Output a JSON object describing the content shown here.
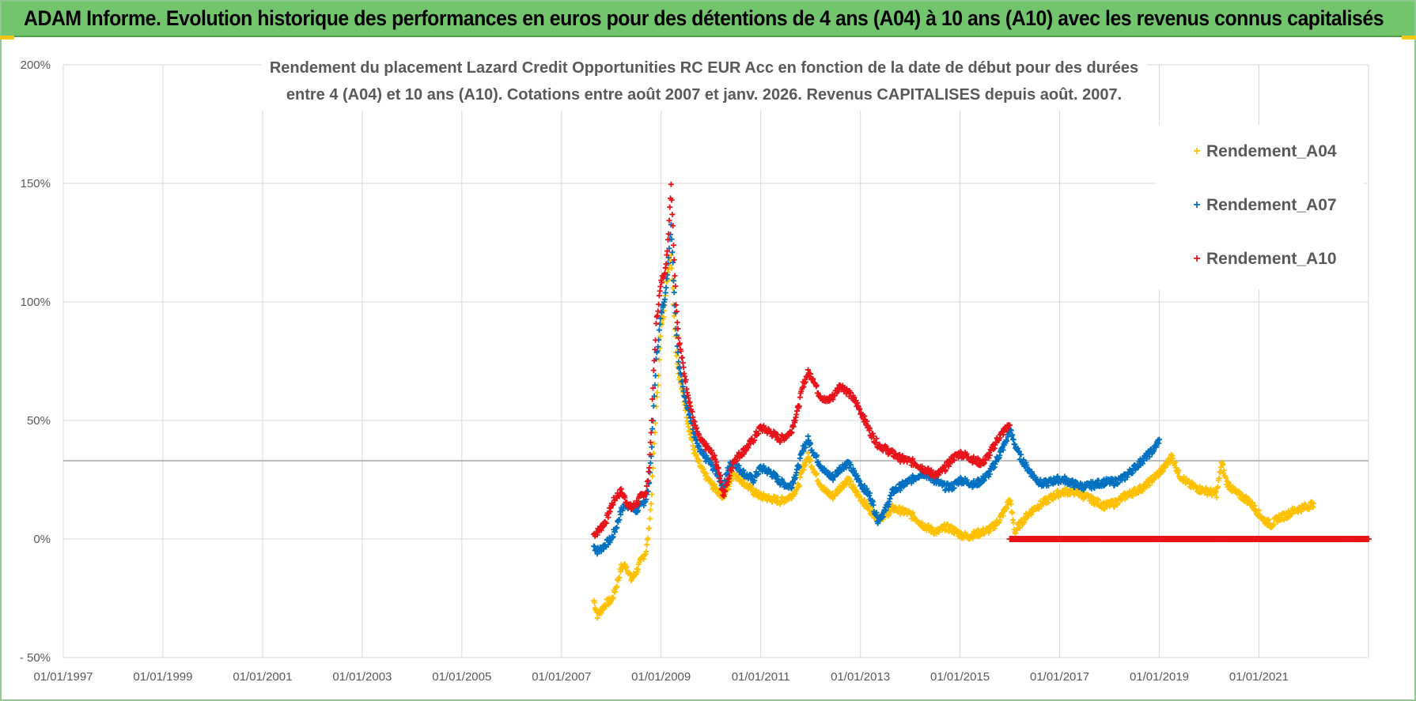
{
  "banner": {
    "title": "ADAM Informe. Evolution historique des performances en euros pour des détentions de 4 ans (A04) à 10 ans (A10) avec les revenus connus capitalisés"
  },
  "colors": {
    "banner_bg": "#72c46d",
    "accent_yellow": "#f5c518",
    "A04": "#ffc000",
    "A07": "#0070c0",
    "A10": "#e8141b",
    "grid": "#d9d9d9",
    "text": "#595959"
  },
  "chart_data": {
    "type": "scatter",
    "title_lines": [
      "Rendement du placement Lazard Credit Opportunities RC EUR Acc en fonction de la date de début pour des durées",
      "entre 4 (A04) et 10 ans (A10).  Cotations entre août 2007  et janv. 2026.  Revenus CAPITALISES  depuis août. 2007."
    ],
    "x_tick_labels": [
      "01/01/1997",
      "01/01/1999",
      "01/01/2001",
      "01/01/2003",
      "01/01/2005",
      "01/01/2007",
      "01/01/2009",
      "01/01/2011",
      "01/01/2013",
      "01/01/2015",
      "01/01/2017",
      "01/01/2019",
      "01/01/2021"
    ],
    "x_range": [
      1997.0,
      2023.2
    ],
    "y_tick_labels": [
      "200%",
      "150%",
      "100%",
      "50%",
      "0%",
      "- 50%"
    ],
    "y_ticks": [
      200,
      150,
      100,
      50,
      0,
      -50
    ],
    "y_range": [
      -50,
      200
    ],
    "reference_line_y": 33,
    "grid": true,
    "legend_position": "top-right",
    "marker": "+",
    "series": [
      {
        "name": "Rendement_A04",
        "color_key": "A04",
        "points": [
          [
            2007.65,
            -26
          ],
          [
            2007.72,
            -32
          ],
          [
            2007.8,
            -30
          ],
          [
            2007.9,
            -27
          ],
          [
            2008.0,
            -26
          ],
          [
            2008.1,
            -20
          ],
          [
            2008.2,
            -12
          ],
          [
            2008.3,
            -11
          ],
          [
            2008.4,
            -17
          ],
          [
            2008.5,
            -14
          ],
          [
            2008.6,
            -9
          ],
          [
            2008.7,
            -5
          ],
          [
            2008.75,
            3
          ],
          [
            2008.8,
            15
          ],
          [
            2008.85,
            35
          ],
          [
            2008.9,
            55
          ],
          [
            2008.95,
            70
          ],
          [
            2009.0,
            90
          ],
          [
            2009.05,
            95
          ],
          [
            2009.1,
            105
          ],
          [
            2009.15,
            115
          ],
          [
            2009.2,
            120
          ],
          [
            2009.25,
            100
          ],
          [
            2009.3,
            80
          ],
          [
            2009.35,
            70
          ],
          [
            2009.45,
            60
          ],
          [
            2009.55,
            48
          ],
          [
            2009.65,
            38
          ],
          [
            2009.75,
            32
          ],
          [
            2009.85,
            28
          ],
          [
            2009.95,
            25
          ],
          [
            2010.05,
            22
          ],
          [
            2010.15,
            20
          ],
          [
            2010.25,
            18
          ],
          [
            2010.35,
            22
          ],
          [
            2010.45,
            28
          ],
          [
            2010.55,
            26
          ],
          [
            2010.7,
            23
          ],
          [
            2010.85,
            20
          ],
          [
            2011.0,
            18
          ],
          [
            2011.2,
            17
          ],
          [
            2011.4,
            16
          ],
          [
            2011.6,
            18
          ],
          [
            2011.75,
            22
          ],
          [
            2011.85,
            30
          ],
          [
            2011.95,
            35
          ],
          [
            2012.05,
            30
          ],
          [
            2012.15,
            25
          ],
          [
            2012.3,
            20
          ],
          [
            2012.45,
            18
          ],
          [
            2012.6,
            22
          ],
          [
            2012.75,
            25
          ],
          [
            2012.9,
            20
          ],
          [
            2013.05,
            16
          ],
          [
            2013.2,
            12
          ],
          [
            2013.35,
            9
          ],
          [
            2013.5,
            10
          ],
          [
            2013.65,
            13
          ],
          [
            2013.8,
            12
          ],
          [
            2013.95,
            11
          ],
          [
            2014.1,
            9
          ],
          [
            2014.25,
            6
          ],
          [
            2014.4,
            4
          ],
          [
            2014.55,
            3
          ],
          [
            2014.7,
            5
          ],
          [
            2014.85,
            4
          ],
          [
            2015.0,
            2
          ],
          [
            2015.15,
            1
          ],
          [
            2015.3,
            2
          ],
          [
            2015.45,
            3
          ],
          [
            2015.6,
            4
          ],
          [
            2015.75,
            7
          ],
          [
            2015.9,
            12
          ],
          [
            2016.0,
            17
          ],
          [
            2016.1,
            3
          ],
          [
            2016.2,
            6
          ],
          [
            2016.35,
            10
          ],
          [
            2016.5,
            13
          ],
          [
            2016.65,
            15
          ],
          [
            2016.8,
            17
          ],
          [
            2016.95,
            19
          ],
          [
            2017.1,
            20
          ],
          [
            2017.3,
            20
          ],
          [
            2017.5,
            18
          ],
          [
            2017.7,
            16
          ],
          [
            2017.9,
            14
          ],
          [
            2018.1,
            15
          ],
          [
            2018.3,
            18
          ],
          [
            2018.5,
            20
          ],
          [
            2018.7,
            22
          ],
          [
            2018.9,
            26
          ],
          [
            2019.1,
            30
          ],
          [
            2019.25,
            35
          ],
          [
            2019.4,
            27
          ],
          [
            2019.6,
            23
          ],
          [
            2019.8,
            21
          ],
          [
            2020.0,
            20
          ],
          [
            2020.15,
            19
          ],
          [
            2020.25,
            32
          ],
          [
            2020.35,
            24
          ],
          [
            2020.5,
            20
          ],
          [
            2020.65,
            18
          ],
          [
            2020.8,
            16
          ],
          [
            2020.95,
            12
          ],
          [
            2021.1,
            8
          ],
          [
            2021.25,
            6
          ],
          [
            2021.4,
            9
          ],
          [
            2021.55,
            10
          ],
          [
            2021.7,
            12
          ],
          [
            2021.85,
            13
          ],
          [
            2022.0,
            14
          ],
          [
            2022.1,
            15
          ]
        ]
      },
      {
        "name": "Rendement_A07",
        "color_key": "A07",
        "points": [
          [
            2007.65,
            -3
          ],
          [
            2007.72,
            -5
          ],
          [
            2007.8,
            -4
          ],
          [
            2007.9,
            -2
          ],
          [
            2008.0,
            0
          ],
          [
            2008.1,
            5
          ],
          [
            2008.2,
            12
          ],
          [
            2008.3,
            15
          ],
          [
            2008.4,
            13
          ],
          [
            2008.5,
            12
          ],
          [
            2008.6,
            14
          ],
          [
            2008.7,
            17
          ],
          [
            2008.75,
            22
          ],
          [
            2008.8,
            35
          ],
          [
            2008.85,
            55
          ],
          [
            2008.9,
            75
          ],
          [
            2008.95,
            85
          ],
          [
            2009.0,
            95
          ],
          [
            2009.05,
            100
          ],
          [
            2009.1,
            105
          ],
          [
            2009.15,
            120
          ],
          [
            2009.2,
            133
          ],
          [
            2009.25,
            110
          ],
          [
            2009.3,
            90
          ],
          [
            2009.35,
            75
          ],
          [
            2009.45,
            62
          ],
          [
            2009.55,
            55
          ],
          [
            2009.65,
            45
          ],
          [
            2009.75,
            38
          ],
          [
            2009.85,
            35
          ],
          [
            2009.95,
            33
          ],
          [
            2010.05,
            30
          ],
          [
            2010.15,
            27
          ],
          [
            2010.25,
            22
          ],
          [
            2010.35,
            30
          ],
          [
            2010.45,
            33
          ],
          [
            2010.55,
            30
          ],
          [
            2010.7,
            27
          ],
          [
            2010.85,
            25
          ],
          [
            2011.0,
            30
          ],
          [
            2011.2,
            28
          ],
          [
            2011.4,
            24
          ],
          [
            2011.6,
            22
          ],
          [
            2011.75,
            30
          ],
          [
            2011.85,
            38
          ],
          [
            2011.95,
            42
          ],
          [
            2012.05,
            37
          ],
          [
            2012.15,
            33
          ],
          [
            2012.3,
            28
          ],
          [
            2012.45,
            26
          ],
          [
            2012.6,
            30
          ],
          [
            2012.75,
            32
          ],
          [
            2012.9,
            27
          ],
          [
            2013.05,
            22
          ],
          [
            2013.2,
            18
          ],
          [
            2013.35,
            8
          ],
          [
            2013.5,
            12
          ],
          [
            2013.65,
            20
          ],
          [
            2013.8,
            22
          ],
          [
            2013.95,
            24
          ],
          [
            2014.1,
            26
          ],
          [
            2014.25,
            28
          ],
          [
            2014.4,
            26
          ],
          [
            2014.55,
            24
          ],
          [
            2014.7,
            22
          ],
          [
            2014.85,
            22
          ],
          [
            2015.0,
            25
          ],
          [
            2015.15,
            24
          ],
          [
            2015.3,
            23
          ],
          [
            2015.45,
            25
          ],
          [
            2015.6,
            28
          ],
          [
            2015.75,
            34
          ],
          [
            2015.9,
            40
          ],
          [
            2016.0,
            46
          ],
          [
            2016.1,
            40
          ],
          [
            2016.2,
            35
          ],
          [
            2016.35,
            30
          ],
          [
            2016.5,
            26
          ],
          [
            2016.65,
            23
          ],
          [
            2016.8,
            24
          ],
          [
            2016.95,
            25
          ],
          [
            2017.1,
            25
          ],
          [
            2017.3,
            23
          ],
          [
            2017.5,
            22
          ],
          [
            2017.7,
            23
          ],
          [
            2017.9,
            24
          ],
          [
            2018.1,
            24
          ],
          [
            2018.3,
            26
          ],
          [
            2018.5,
            30
          ],
          [
            2018.7,
            34
          ],
          [
            2018.9,
            38
          ],
          [
            2019.0,
            42
          ]
        ]
      },
      {
        "name": "Rendement_A10",
        "color_key": "A10",
        "points": [
          [
            2007.65,
            2
          ],
          [
            2007.72,
            3
          ],
          [
            2007.8,
            5
          ],
          [
            2007.9,
            8
          ],
          [
            2008.0,
            14
          ],
          [
            2008.1,
            18
          ],
          [
            2008.2,
            20
          ],
          [
            2008.3,
            16
          ],
          [
            2008.4,
            13
          ],
          [
            2008.5,
            15
          ],
          [
            2008.6,
            18
          ],
          [
            2008.7,
            20
          ],
          [
            2008.75,
            27
          ],
          [
            2008.8,
            45
          ],
          [
            2008.85,
            70
          ],
          [
            2008.9,
            90
          ],
          [
            2008.95,
            100
          ],
          [
            2009.0,
            108
          ],
          [
            2009.05,
            112
          ],
          [
            2009.1,
            115
          ],
          [
            2009.15,
            130
          ],
          [
            2009.2,
            150
          ],
          [
            2009.25,
            125
          ],
          [
            2009.3,
            100
          ],
          [
            2009.35,
            85
          ],
          [
            2009.45,
            72
          ],
          [
            2009.55,
            60
          ],
          [
            2009.65,
            50
          ],
          [
            2009.75,
            43
          ],
          [
            2009.85,
            40
          ],
          [
            2009.95,
            38
          ],
          [
            2010.05,
            35
          ],
          [
            2010.15,
            30
          ],
          [
            2010.25,
            18
          ],
          [
            2010.35,
            25
          ],
          [
            2010.45,
            33
          ],
          [
            2010.55,
            35
          ],
          [
            2010.7,
            38
          ],
          [
            2010.85,
            42
          ],
          [
            2011.0,
            47
          ],
          [
            2011.2,
            45
          ],
          [
            2011.4,
            42
          ],
          [
            2011.6,
            45
          ],
          [
            2011.75,
            55
          ],
          [
            2011.85,
            65
          ],
          [
            2011.95,
            70
          ],
          [
            2012.05,
            68
          ],
          [
            2012.15,
            62
          ],
          [
            2012.3,
            58
          ],
          [
            2012.45,
            60
          ],
          [
            2012.6,
            65
          ],
          [
            2012.75,
            62
          ],
          [
            2012.9,
            58
          ],
          [
            2013.05,
            52
          ],
          [
            2013.2,
            45
          ],
          [
            2013.35,
            40
          ],
          [
            2013.5,
            38
          ],
          [
            2013.65,
            36
          ],
          [
            2013.8,
            34
          ],
          [
            2013.95,
            33
          ],
          [
            2014.1,
            32
          ],
          [
            2014.25,
            30
          ],
          [
            2014.4,
            28
          ],
          [
            2014.55,
            27
          ],
          [
            2014.7,
            30
          ],
          [
            2014.85,
            34
          ],
          [
            2015.0,
            36
          ],
          [
            2015.15,
            35
          ],
          [
            2015.3,
            33
          ],
          [
            2015.45,
            32
          ],
          [
            2015.6,
            36
          ],
          [
            2015.75,
            42
          ],
          [
            2015.9,
            46
          ],
          [
            2016.0,
            48
          ]
        ]
      },
      {
        "name": "Rendement_A10_flat",
        "color_key": "A10",
        "points": [
          [
            2016.0,
            0
          ],
          [
            2023.2,
            0
          ]
        ]
      }
    ]
  },
  "legend": {
    "items": [
      {
        "label": "Rendement_A04",
        "color_key": "A04"
      },
      {
        "label": "Rendement_A07",
        "color_key": "A07"
      },
      {
        "label": "Rendement_A10",
        "color_key": "A10"
      }
    ]
  }
}
